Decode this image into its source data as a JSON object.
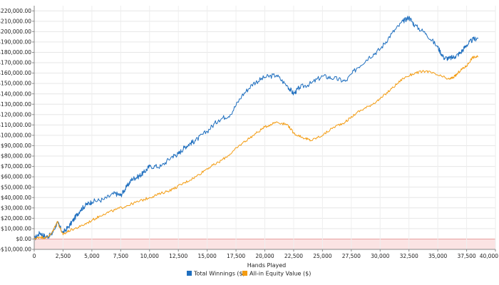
{
  "chart_data": {
    "type": "line",
    "xlabel": "Hands Played",
    "ylabel": "",
    "xlim": [
      0,
      40000
    ],
    "ylim": [
      -10000,
      225000
    ],
    "x_ticks": [
      0,
      2500,
      5000,
      7500,
      10000,
      12500,
      15000,
      17500,
      20000,
      22500,
      25000,
      27500,
      30000,
      32500,
      35000,
      37500,
      40000
    ],
    "x_tick_labels": [
      "0",
      "2,500",
      "5,000",
      "7,500",
      "10,000",
      "12,500",
      "15,000",
      "17,500",
      "20,000",
      "22,500",
      "25,000",
      "27,500",
      "30,000",
      "32,500",
      "35,000",
      "37,500",
      "40,000"
    ],
    "y_ticks": [
      -10000,
      0,
      10000,
      20000,
      30000,
      40000,
      50000,
      60000,
      70000,
      80000,
      90000,
      100000,
      110000,
      120000,
      130000,
      140000,
      150000,
      160000,
      170000,
      180000,
      190000,
      200000,
      210000,
      220000
    ],
    "y_tick_labels": [
      "-$10,000.00",
      "$0.00",
      "$10,000.00",
      "$20,000.00",
      "$30,000.00",
      "$40,000.00",
      "$50,000.00",
      "$60,000.00",
      "$70,000.00",
      "$80,000.00",
      "$90,000.00",
      "$100,000.00",
      "$110,000.00",
      "$120,000.00",
      "$130,000.00",
      "$140,000.00",
      "$150,000.00",
      "$160,000.00",
      "$170,000.00",
      "$180,000.00",
      "$190,000.00",
      "$200,000.00",
      "$210,000.00",
      "$220,000.00"
    ],
    "grid": true,
    "negative_region_color": "#fbe3e3",
    "legend_position": "bottom-center",
    "series": [
      {
        "name": "Total Winnings ($)",
        "color": "#1f6fbf",
        "points": [
          [
            0,
            0
          ],
          [
            500,
            6000
          ],
          [
            1000,
            2000
          ],
          [
            1500,
            4000
          ],
          [
            2000,
            16000
          ],
          [
            2500,
            6000
          ],
          [
            3000,
            12000
          ],
          [
            3500,
            20000
          ],
          [
            4000,
            28000
          ],
          [
            4500,
            33000
          ],
          [
            5000,
            36000
          ],
          [
            6000,
            38000
          ],
          [
            7000,
            44000
          ],
          [
            7500,
            42000
          ],
          [
            8000,
            50000
          ],
          [
            8500,
            58000
          ],
          [
            9000,
            60000
          ],
          [
            9500,
            64000
          ],
          [
            10000,
            70000
          ],
          [
            11000,
            70000
          ],
          [
            12000,
            80000
          ],
          [
            12500,
            82000
          ],
          [
            13000,
            88000
          ],
          [
            13500,
            92000
          ],
          [
            14000,
            95000
          ],
          [
            15000,
            104000
          ],
          [
            16000,
            115000
          ],
          [
            17000,
            120000
          ],
          [
            18000,
            138000
          ],
          [
            19000,
            150000
          ],
          [
            20000,
            156000
          ],
          [
            21000,
            158000
          ],
          [
            22000,
            147000
          ],
          [
            22500,
            140000
          ],
          [
            23000,
            146000
          ],
          [
            24000,
            150000
          ],
          [
            25000,
            157000
          ],
          [
            26000,
            155000
          ],
          [
            27000,
            152000
          ],
          [
            28000,
            165000
          ],
          [
            29000,
            175000
          ],
          [
            30000,
            183000
          ],
          [
            31000,
            198000
          ],
          [
            32000,
            210000
          ],
          [
            32500,
            214000
          ],
          [
            33000,
            206000
          ],
          [
            34000,
            198000
          ],
          [
            35000,
            185000
          ],
          [
            35500,
            175000
          ],
          [
            36000,
            174000
          ],
          [
            36500,
            176000
          ],
          [
            37000,
            180000
          ],
          [
            37500,
            187000
          ],
          [
            38000,
            192000
          ],
          [
            38500,
            194000
          ]
        ]
      },
      {
        "name": "All-in Equity Value ($)",
        "color": "#f39c12",
        "points": [
          [
            0,
            0
          ],
          [
            500,
            2000
          ],
          [
            1000,
            1000
          ],
          [
            1500,
            5000
          ],
          [
            2000,
            17000
          ],
          [
            2500,
            4000
          ],
          [
            3000,
            8000
          ],
          [
            4000,
            12000
          ],
          [
            5000,
            18000
          ],
          [
            6000,
            24000
          ],
          [
            7000,
            28000
          ],
          [
            8000,
            32000
          ],
          [
            9000,
            36000
          ],
          [
            10000,
            40000
          ],
          [
            11000,
            44000
          ],
          [
            12000,
            48000
          ],
          [
            13000,
            54000
          ],
          [
            14000,
            60000
          ],
          [
            15000,
            68000
          ],
          [
            16000,
            74000
          ],
          [
            17000,
            82000
          ],
          [
            18000,
            92000
          ],
          [
            19000,
            100000
          ],
          [
            20000,
            108000
          ],
          [
            21000,
            113000
          ],
          [
            22000,
            110000
          ],
          [
            22500,
            102000
          ],
          [
            23500,
            97000
          ],
          [
            24000,
            95000
          ],
          [
            25000,
            100000
          ],
          [
            26000,
            108000
          ],
          [
            27000,
            113000
          ],
          [
            28000,
            122000
          ],
          [
            29000,
            128000
          ],
          [
            30000,
            135000
          ],
          [
            31000,
            145000
          ],
          [
            32000,
            155000
          ],
          [
            33000,
            160000
          ],
          [
            34000,
            162000
          ],
          [
            35000,
            158000
          ],
          [
            36000,
            154000
          ],
          [
            36500,
            157000
          ],
          [
            37000,
            163000
          ],
          [
            37500,
            167000
          ],
          [
            38000,
            175000
          ],
          [
            38500,
            176000
          ]
        ]
      }
    ]
  }
}
